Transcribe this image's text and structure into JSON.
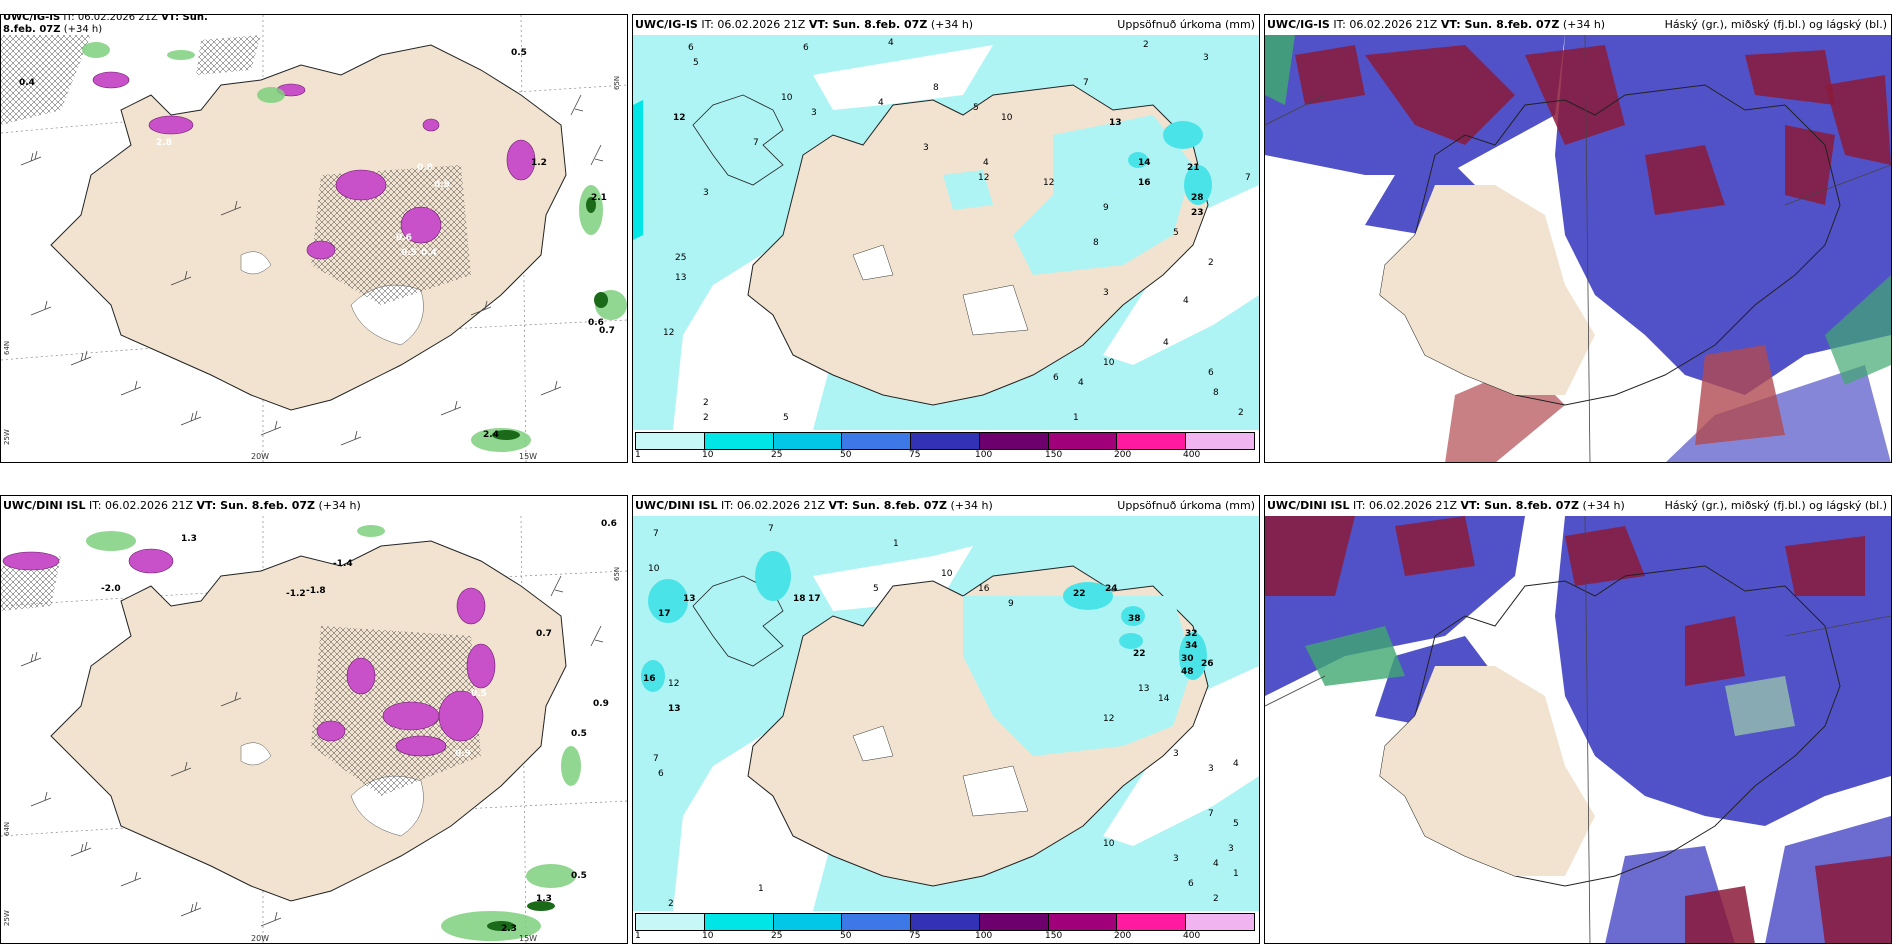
{
  "panels": {
    "tl": {
      "model": "UWC/IG-IS",
      "it": "IT: 06.02.2026 21Z",
      "vt": "VT: Sun. 8.feb. 07Z",
      "lead": "(+34",
      "lead2": "h)",
      "values": [
        "0.4",
        "0.5",
        "2.8",
        "1.2",
        "2.1",
        "0.6",
        "0.7",
        "0.8",
        "0.9",
        "0.5",
        "0.4",
        "0.6",
        "2.4"
      ],
      "lon": [
        "20W",
        "15W"
      ],
      "lat": [
        "65N",
        "64N",
        "25W"
      ]
    },
    "tm": {
      "model": "UWC/IG-IS",
      "it": "IT: 06.02.2026 21Z",
      "vt": "VT: Sun. 8.feb. 07Z",
      "lead": "(+34 h)",
      "param": "Uppsöfnuð úrkoma (mm)",
      "values": [
        "6",
        "6",
        "4",
        "2",
        "3",
        "12",
        "4",
        "7",
        "10",
        "3",
        "8",
        "5",
        "10",
        "7",
        "13",
        "12",
        "14",
        "16",
        "21",
        "28",
        "23",
        "25",
        "13",
        "12",
        "5",
        "4",
        "10",
        "6",
        "8",
        "2",
        "2",
        "4",
        "3",
        "4",
        "7",
        "9",
        "12",
        "5",
        "8",
        "4",
        "3",
        "1",
        "2",
        "6",
        "2",
        "5",
        "3"
      ]
    },
    "tr": {
      "model": "UWC/IG-IS",
      "it": "IT: 06.02.2026 21Z",
      "vt": "VT: Sun. 8.feb. 07Z",
      "lead": "(+34 h)",
      "param": "Háský (gr.), miðský (fj.bl.) og lágský (bl.)"
    },
    "bl": {
      "model": "UWC/DINI ISL",
      "it": "IT: 06.02.2026 21Z",
      "vt": "VT: Sun. 8.feb. 07Z",
      "lead": "(+34 h)",
      "values": [
        "0.6",
        "1.3",
        "-2.0",
        "-1.4",
        "-1.2",
        "-1.8",
        "0.7",
        "0.9",
        "0.5",
        "0.5",
        "0.9",
        "2.3",
        "1.3",
        "0.5"
      ],
      "lon": [
        "20W",
        "15W"
      ],
      "lat": [
        "65N",
        "64N",
        "25W"
      ]
    },
    "bm": {
      "model": "UWC/DINI ISL",
      "it": "IT: 06.02.2026 21Z",
      "vt": "VT: Sun. 8.feb. 07Z",
      "lead": "(+34 h)",
      "param": "Uppsöfnuð úrkoma (mm)",
      "values": [
        "7",
        "7",
        "10",
        "17",
        "13",
        "16",
        "12",
        "13",
        "18",
        "17",
        "7",
        "6",
        "1",
        "5",
        "9",
        "10",
        "16",
        "22",
        "24",
        "38",
        "32",
        "34",
        "30",
        "48",
        "26",
        "22",
        "13",
        "14",
        "12",
        "3",
        "2",
        "4",
        "3",
        "7",
        "10",
        "1",
        "2",
        "3",
        "6",
        "5",
        "4",
        "3",
        "1"
      ]
    },
    "br": {
      "model": "UWC/DINI ISL",
      "it": "IT: 06.02.2026 21Z",
      "vt": "VT: Sun. 8.feb. 07Z",
      "lead": "(+34 h)",
      "param": "Háský (gr.), miðský (fj.bl.) og lágský (bl.)"
    }
  },
  "colorbar": {
    "labels": [
      "1",
      "10",
      "25",
      "50",
      "75",
      "100",
      "150",
      "200",
      "400"
    ],
    "colors": [
      "#c8f7f7",
      "#00e5e5",
      "#00c8e6",
      "#3c78e6",
      "#3232b4",
      "#6e006e",
      "#a0007a",
      "#ff1aa0",
      "#f0b4f0"
    ]
  },
  "colors": {
    "land": "#f1e3d0",
    "precip_light": "#aef4f4",
    "precip_mid": "#4ae3e8",
    "cloud_high": "#8b1a3a",
    "cloud_mid": "#5252c8",
    "cloud_low": "#2a4ab0",
    "snow_magenta": "#c850c8",
    "rain_green": "#7ed07e"
  }
}
